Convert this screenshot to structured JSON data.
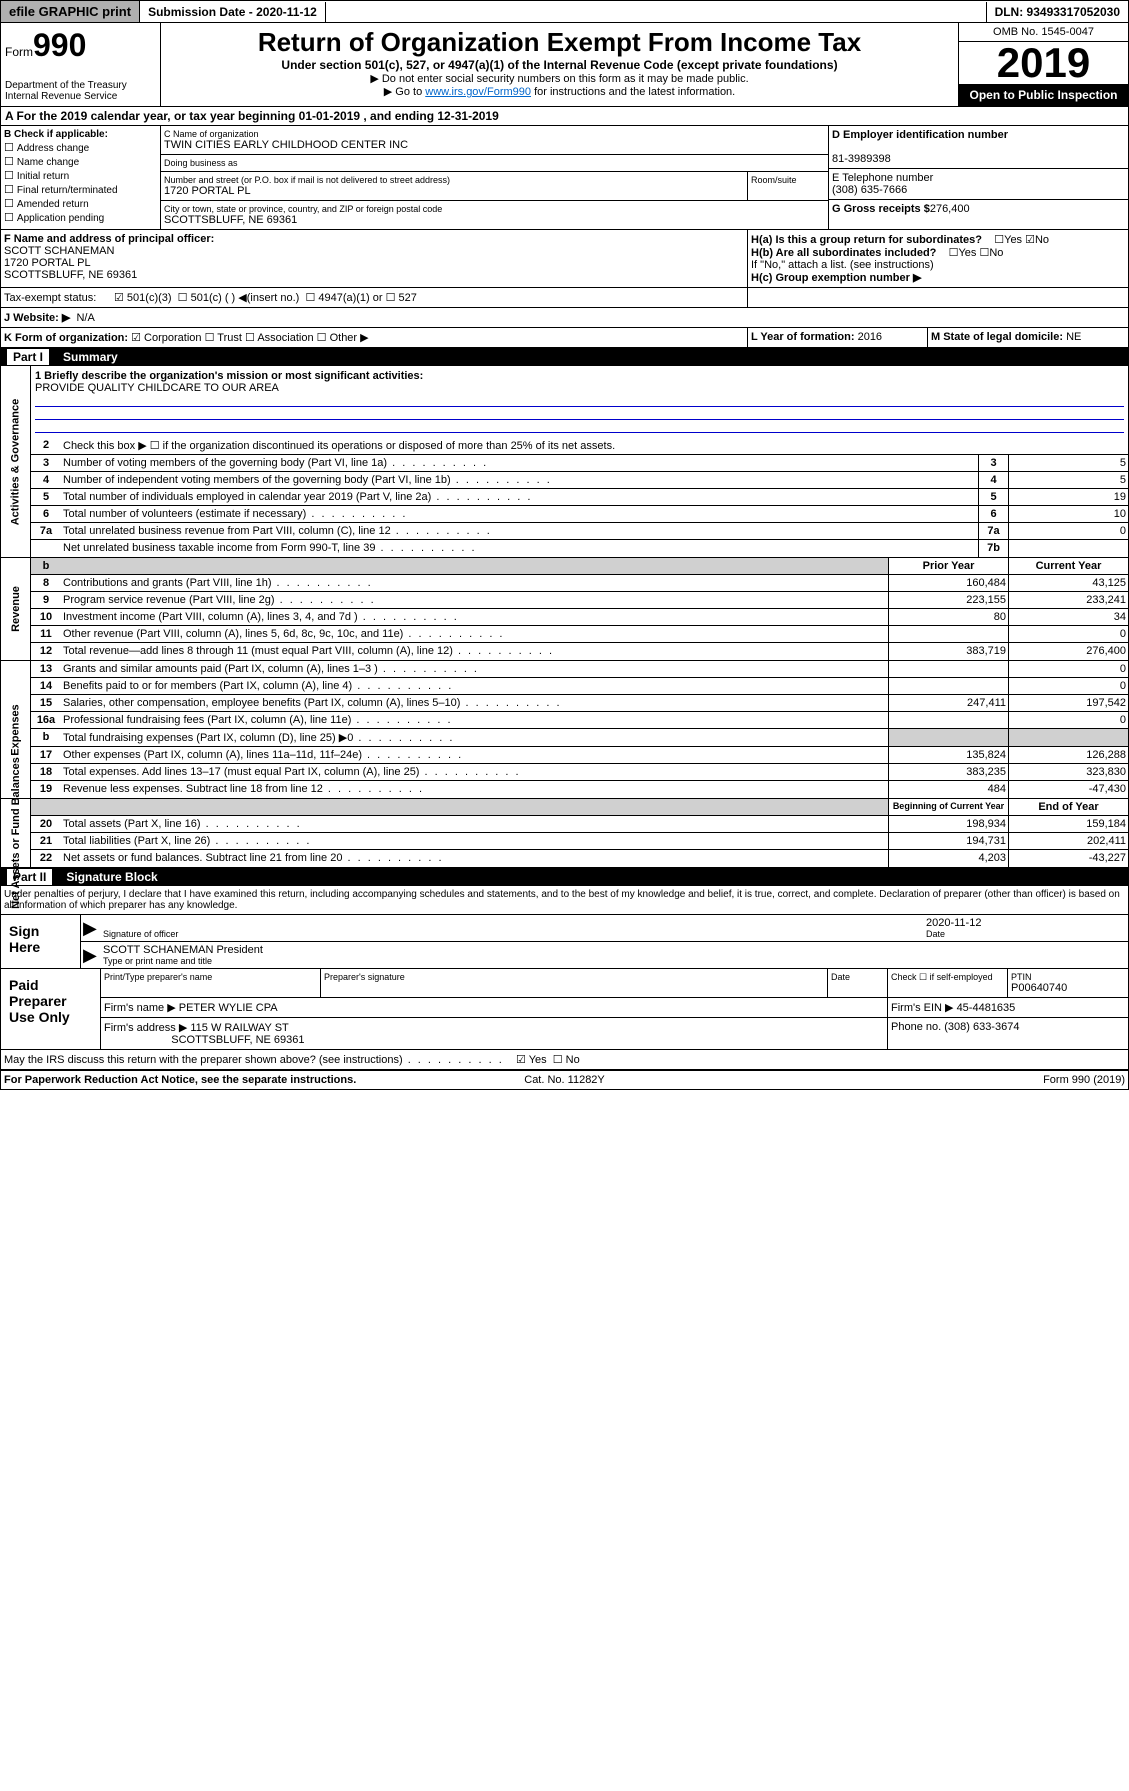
{
  "topbar": {
    "efile": "efile GRAPHIC print",
    "submission_label": "Submission Date - 2020-11-12",
    "dln": "DLN: 93493317052030"
  },
  "header": {
    "form_prefix": "Form",
    "form_number": "990",
    "dept": "Department of the Treasury\nInternal Revenue Service",
    "title": "Return of Organization Exempt From Income Tax",
    "subtitle": "Under section 501(c), 527, or 4947(a)(1) of the Internal Revenue Code (except private foundations)",
    "note1": "▶ Do not enter social security numbers on this form as it may be made public.",
    "note2_pre": "▶ Go to ",
    "note2_link": "www.irs.gov/Form990",
    "note2_post": " for instructions and the latest information.",
    "omb": "OMB No. 1545-0047",
    "year": "2019",
    "open": "Open to Public Inspection"
  },
  "period": "A For the 2019 calendar year, or tax year beginning 01-01-2019   , and ending 12-31-2019",
  "section_b": {
    "label": "B Check if applicable:",
    "items": [
      "Address change",
      "Name change",
      "Initial return",
      "Final return/terminated",
      "Amended return",
      "Application pending"
    ]
  },
  "section_c": {
    "name_label": "C Name of organization",
    "name": "TWIN CITIES EARLY CHILDHOOD CENTER INC",
    "dba_label": "Doing business as",
    "dba": "",
    "street_label": "Number and street (or P.O. box if mail is not delivered to street address)",
    "street": "1720 PORTAL PL",
    "room_label": "Room/suite",
    "city_label": "City or town, state or province, country, and ZIP or foreign postal code",
    "city": "SCOTTSBLUFF, NE  69361"
  },
  "section_d": {
    "label": "D Employer identification number",
    "value": "81-3989398"
  },
  "section_e": {
    "label": "E Telephone number",
    "value": "(308) 635-7666"
  },
  "section_g": {
    "label": "G Gross receipts $",
    "value": "276,400"
  },
  "section_f": {
    "label": "F  Name and address of principal officer:",
    "name": "SCOTT SCHANEMAN",
    "street": "1720 PORTAL PL",
    "city": "SCOTTSBLUFF, NE  69361"
  },
  "section_h": {
    "ha": "H(a)  Is this a group return for subordinates?",
    "hb": "H(b)  Are all subordinates included?",
    "hb_note": "If \"No,\" attach a list. (see instructions)",
    "hc": "H(c)  Group exemption number ▶"
  },
  "tax_exempt": {
    "label": "Tax-exempt status:",
    "opt1": "501(c)(3)",
    "opt2": "501(c) (   ) ◀(insert no.)",
    "opt3": "4947(a)(1) or",
    "opt4": "527"
  },
  "website": {
    "label": "J  Website: ▶",
    "value": "N/A"
  },
  "section_k": {
    "label": "K Form of organization:",
    "opts": [
      "Corporation",
      "Trust",
      "Association",
      "Other ▶"
    ]
  },
  "section_l": {
    "label": "L Year of formation:",
    "value": "2016"
  },
  "section_m": {
    "label": "M State of legal domicile:",
    "value": "NE"
  },
  "part1": {
    "header": "Summary",
    "tab_gov": "Activities & Governance",
    "tab_rev": "Revenue",
    "tab_exp": "Expenses",
    "tab_net": "Net Assets or Fund Balances",
    "q1_label": "1  Briefly describe the organization's mission or most significant activities:",
    "q1_value": "PROVIDE QUALITY CHILDCARE TO OUR AREA",
    "q2": "Check this box ▶ ☐  if the organization discontinued its operations or disposed of more than 25% of its net assets.",
    "rows_gov": [
      {
        "n": "3",
        "t": "Number of voting members of the governing body (Part VI, line 1a)",
        "b": "3",
        "v": "5"
      },
      {
        "n": "4",
        "t": "Number of independent voting members of the governing body (Part VI, line 1b)",
        "b": "4",
        "v": "5"
      },
      {
        "n": "5",
        "t": "Total number of individuals employed in calendar year 2019 (Part V, line 2a)",
        "b": "5",
        "v": "19"
      },
      {
        "n": "6",
        "t": "Total number of volunteers (estimate if necessary)",
        "b": "6",
        "v": "10"
      },
      {
        "n": "7a",
        "t": "Total unrelated business revenue from Part VIII, column (C), line 12",
        "b": "7a",
        "v": "0"
      },
      {
        "n": "",
        "t": "Net unrelated business taxable income from Form 990-T, line 39",
        "b": "7b",
        "v": ""
      }
    ],
    "prior_hdr": "Prior Year",
    "current_hdr": "Current Year",
    "rows_rev": [
      {
        "n": "8",
        "t": "Contributions and grants (Part VIII, line 1h)",
        "p": "160,484",
        "c": "43,125"
      },
      {
        "n": "9",
        "t": "Program service revenue (Part VIII, line 2g)",
        "p": "223,155",
        "c": "233,241"
      },
      {
        "n": "10",
        "t": "Investment income (Part VIII, column (A), lines 3, 4, and 7d )",
        "p": "80",
        "c": "34"
      },
      {
        "n": "11",
        "t": "Other revenue (Part VIII, column (A), lines 5, 6d, 8c, 9c, 10c, and 11e)",
        "p": "",
        "c": "0"
      },
      {
        "n": "12",
        "t": "Total revenue—add lines 8 through 11 (must equal Part VIII, column (A), line 12)",
        "p": "383,719",
        "c": "276,400"
      }
    ],
    "rows_exp": [
      {
        "n": "13",
        "t": "Grants and similar amounts paid (Part IX, column (A), lines 1–3 )",
        "p": "",
        "c": "0"
      },
      {
        "n": "14",
        "t": "Benefits paid to or for members (Part IX, column (A), line 4)",
        "p": "",
        "c": "0"
      },
      {
        "n": "15",
        "t": "Salaries, other compensation, employee benefits (Part IX, column (A), lines 5–10)",
        "p": "247,411",
        "c": "197,542"
      },
      {
        "n": "16a",
        "t": "Professional fundraising fees (Part IX, column (A), line 11e)",
        "p": "",
        "c": "0"
      },
      {
        "n": "b",
        "t": "Total fundraising expenses (Part IX, column (D), line 25) ▶0",
        "p": "",
        "c": "",
        "shade": true
      },
      {
        "n": "17",
        "t": "Other expenses (Part IX, column (A), lines 11a–11d, 11f–24e)",
        "p": "135,824",
        "c": "126,288"
      },
      {
        "n": "18",
        "t": "Total expenses. Add lines 13–17 (must equal Part IX, column (A), line 25)",
        "p": "383,235",
        "c": "323,830"
      },
      {
        "n": "19",
        "t": "Revenue less expenses. Subtract line 18 from line 12",
        "p": "484",
        "c": "-47,430"
      }
    ],
    "beg_hdr": "Beginning of Current Year",
    "end_hdr": "End of Year",
    "rows_net": [
      {
        "n": "20",
        "t": "Total assets (Part X, line 16)",
        "p": "198,934",
        "c": "159,184"
      },
      {
        "n": "21",
        "t": "Total liabilities (Part X, line 26)",
        "p": "194,731",
        "c": "202,411"
      },
      {
        "n": "22",
        "t": "Net assets or fund balances. Subtract line 21 from line 20",
        "p": "4,203",
        "c": "-43,227"
      }
    ]
  },
  "part2": {
    "header": "Signature Block",
    "perjury": "Under penalties of perjury, I declare that I have examined this return, including accompanying schedules and statements, and to the best of my knowledge and belief, it is true, correct, and complete. Declaration of preparer (other than officer) is based on all information of which preparer has any knowledge.",
    "sign_here": "Sign Here",
    "sig_off": "Signature of officer",
    "sig_date": "2020-11-12",
    "date_label": "Date",
    "sig_name": "SCOTT SCHANEMAN President",
    "sig_name_label": "Type or print name and title",
    "paid_prep": "Paid Preparer Use Only",
    "prep_name_label": "Print/Type preparer's name",
    "prep_sig_label": "Preparer's signature",
    "prep_date_label": "Date",
    "prep_check": "Check ☐ if self-employed",
    "ptin_label": "PTIN",
    "ptin": "P00640740",
    "firm_name_label": "Firm's name    ▶",
    "firm_name": "PETER WYLIE CPA",
    "firm_ein_label": "Firm's EIN ▶",
    "firm_ein": "45-4481635",
    "firm_addr_label": "Firm's address ▶",
    "firm_addr": "115 W RAILWAY ST",
    "firm_city": "SCOTTSBLUFF, NE  69361",
    "firm_phone_label": "Phone no.",
    "firm_phone": "(308) 633-3674",
    "discuss": "May the IRS discuss this return with the preparer shown above? (see instructions)"
  },
  "footer": {
    "pra": "For Paperwork Reduction Act Notice, see the separate instructions.",
    "cat": "Cat. No. 11282Y",
    "form": "Form 990 (2019)"
  }
}
